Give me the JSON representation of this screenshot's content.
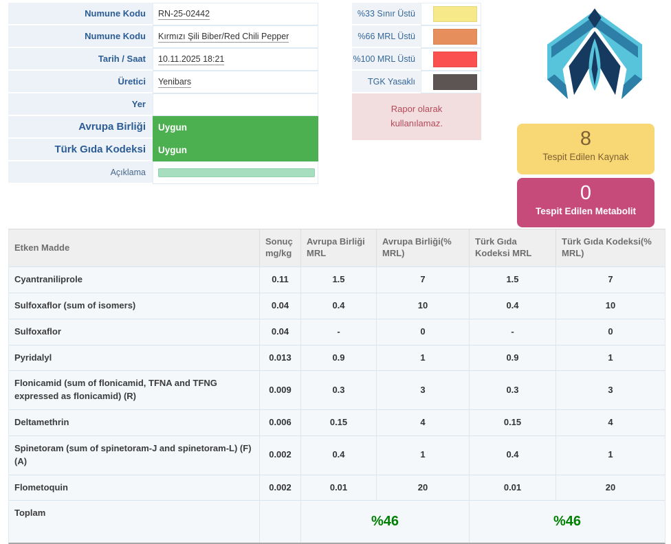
{
  "info_panel": {
    "rows": [
      {
        "label": "Numune Kodu",
        "value": "RN-25-02442",
        "type": "text",
        "label_style": "normal"
      },
      {
        "label": "Numune Kodu",
        "value": "Kırmızı Şili Biber/Red Chili Pepper",
        "type": "text",
        "label_style": "normal"
      },
      {
        "label": "Tarih / Saat",
        "value": "10.11.2025 18:21",
        "type": "text",
        "label_style": "normal"
      },
      {
        "label": "Üretici",
        "value": "Yenibars",
        "type": "text",
        "label_style": "normal"
      },
      {
        "label": "Yer",
        "value": "",
        "type": "empty",
        "label_style": "normal"
      },
      {
        "label": "Avrupa Birliği",
        "value": "Uygun",
        "type": "badge",
        "label_style": "big"
      },
      {
        "label": "Türk Gıda Kodeksi",
        "value": "Uygun",
        "type": "badge",
        "label_style": "big"
      },
      {
        "label": "Açıklama",
        "value": "",
        "type": "bar",
        "label_style": "muted"
      }
    ]
  },
  "legend": {
    "items": [
      {
        "label": "%33 Sınır Üstü",
        "color": "#F5E98A"
      },
      {
        "label": "%66 MRL Üstü",
        "color": "#E78F5C"
      },
      {
        "label": "%100 MRL Üstü",
        "color": "#FB5050"
      },
      {
        "label": "TGK Yasaklı",
        "color": "#5C5553"
      }
    ],
    "notice": "Rapor olarak kullanılamaz."
  },
  "summary_cards": [
    {
      "value": "8",
      "label": "Tespit Edilen Kaynak",
      "bg": "#F8D775",
      "fg": "#7E6134"
    },
    {
      "value": "0",
      "label": "Tespit Edilen Metabolit",
      "bg": "#C64B7B",
      "fg": "#FFFFFF"
    }
  ],
  "results_table": {
    "headers": [
      "Etken Madde",
      "Sonuç mg/kg",
      "Avrupa Birliği MRL",
      "Avrupa Birliği(% MRL)",
      "Türk Gıda Kodeksi MRL",
      "Türk Gıda Kodeksi(% MRL)"
    ],
    "rows": [
      {
        "name": "Cyantraniliprole",
        "result": "0.11",
        "eu_mrl": "1.5",
        "eu_pct": "7",
        "tgk_mrl": "1.5",
        "tgk_pct": "7"
      },
      {
        "name": "Sulfoxaflor (sum of isomers)",
        "result": "0.04",
        "eu_mrl": "0.4",
        "eu_pct": "10",
        "tgk_mrl": "0.4",
        "tgk_pct": "10"
      },
      {
        "name": "Sulfoxaflor",
        "result": "0.04",
        "eu_mrl": "-",
        "eu_pct": "0",
        "tgk_mrl": "-",
        "tgk_pct": "0"
      },
      {
        "name": "Pyridalyl",
        "result": "0.013",
        "eu_mrl": "0.9",
        "eu_pct": "1",
        "tgk_mrl": "0.9",
        "tgk_pct": "1"
      },
      {
        "name": "Flonicamid (sum of flonicamid, TFNA and TFNG expressed as flonicamid) (R)",
        "result": "0.009",
        "eu_mrl": "0.3",
        "eu_pct": "3",
        "tgk_mrl": "0.3",
        "tgk_pct": "3"
      },
      {
        "name": "Deltamethrin",
        "result": "0.006",
        "eu_mrl": "0.15",
        "eu_pct": "4",
        "tgk_mrl": "0.15",
        "tgk_pct": "4"
      },
      {
        "name": "Spinetoram (sum of spinetoram-J and spinetoram-L) (F) (A)",
        "result": "0.002",
        "eu_mrl": "0.4",
        "eu_pct": "1",
        "tgk_mrl": "0.4",
        "tgk_pct": "1"
      },
      {
        "name": "Flometoquin",
        "result": "0.002",
        "eu_mrl": "0.01",
        "eu_pct": "20",
        "tgk_mrl": "0.01",
        "tgk_pct": "20"
      }
    ],
    "total": {
      "label": "Toplam",
      "eu_pct": "%46",
      "tgk_pct": "%46"
    }
  },
  "colors": {
    "status_ok_green": "#4CB050",
    "note_bar_green": "#A7DEC0",
    "total_pct_green": "#008000",
    "notice_bg": "#F2DEDE",
    "notice_fg": "#B4495A",
    "label_blue": "#2B5C94",
    "logo_light": "#57C4DC",
    "logo_mid": "#2E7FA8",
    "logo_dark": "#16395F"
  }
}
